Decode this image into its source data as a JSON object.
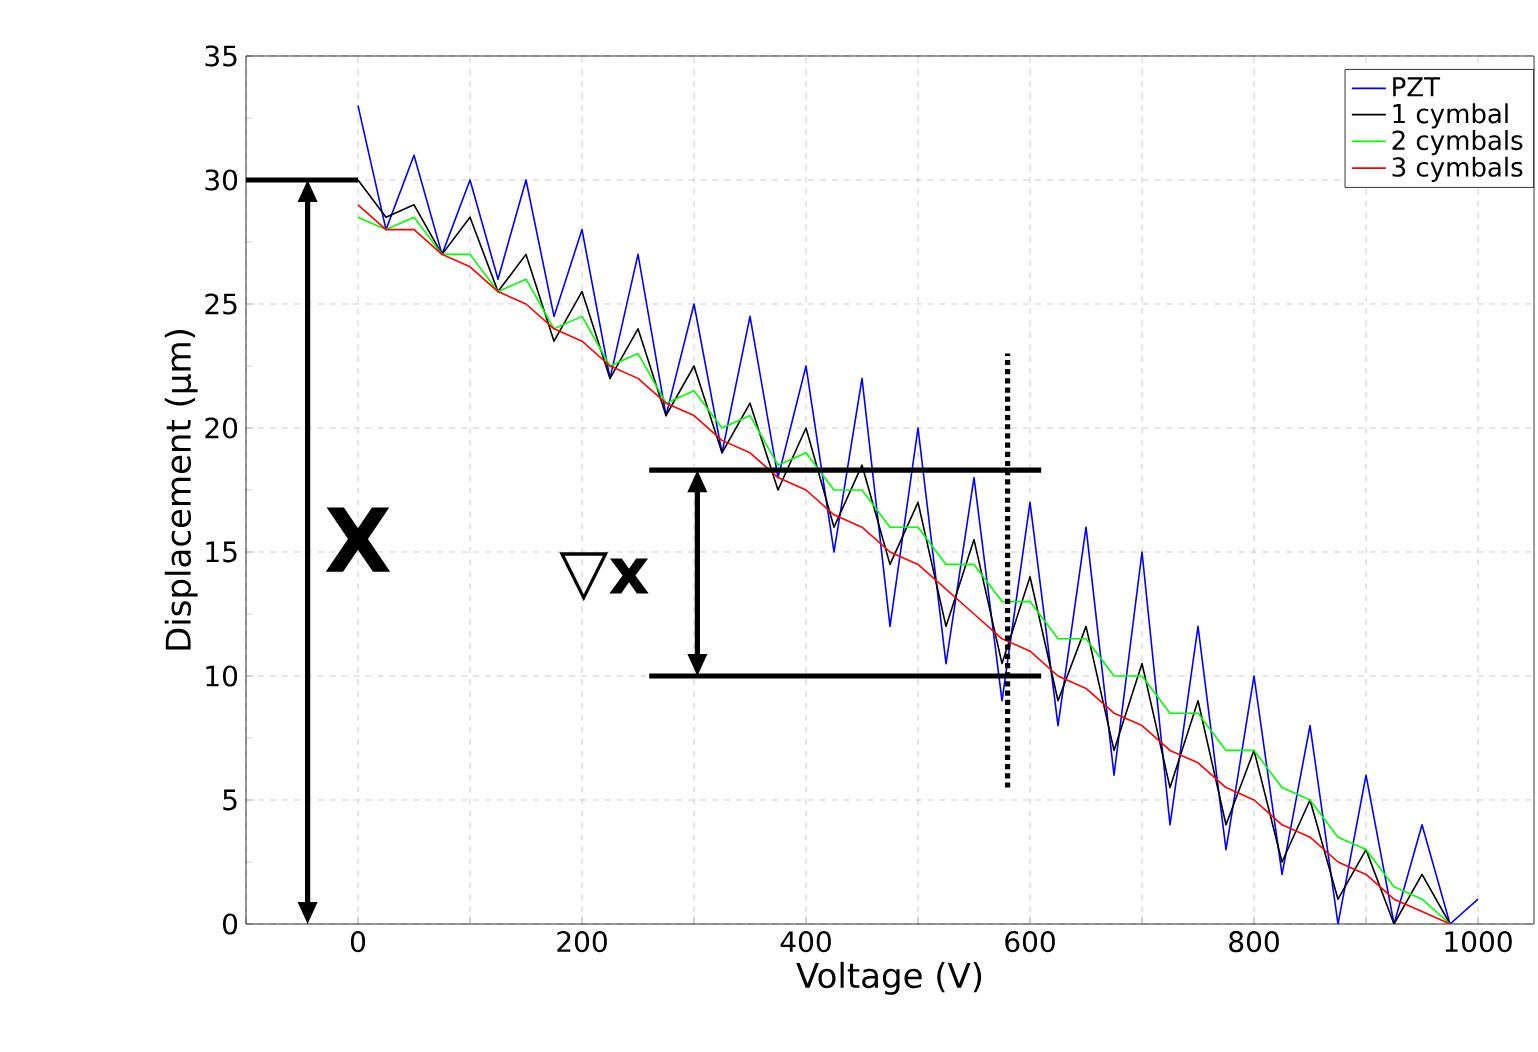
{
  "chart_data": {
    "type": "line",
    "xlabel": "Voltage (V)",
    "ylabel": "Displacement (μm)",
    "xlim": [
      -100,
      1050
    ],
    "ylim": [
      0,
      35
    ],
    "xticks": [
      {
        "value": -100,
        "label": null
      },
      0,
      {
        "value": 100,
        "label": null
      },
      200,
      {
        "value": 300,
        "label": null
      },
      400,
      {
        "value": 500,
        "label": null
      },
      600,
      {
        "value": 700,
        "label": null
      },
      800,
      {
        "value": 900,
        "label": null
      },
      1000
    ],
    "yticks": [
      0,
      5,
      10,
      15,
      20,
      25,
      30,
      35
    ],
    "grid": true,
    "legend": "top right",
    "marker": "none",
    "line_style": "solid",
    "x": [
      0,
      25,
      50,
      75,
      100,
      125,
      150,
      175,
      200,
      225,
      250,
      275,
      300,
      325,
      350,
      375,
      400,
      425,
      450,
      475,
      500,
      525,
      550,
      575,
      600,
      625,
      650,
      675,
      700,
      725,
      750,
      775,
      800,
      825,
      850,
      875,
      900,
      925,
      950,
      975,
      1000
    ],
    "series": [
      {
        "name": "PZT",
        "color": "#0000ff",
        "values": [
          33,
          28,
          31,
          27,
          30,
          26,
          30,
          24.5,
          28,
          22,
          27,
          20.5,
          25,
          19,
          24.5,
          18,
          22.5,
          15,
          22,
          12,
          20,
          10.5,
          18,
          9,
          17,
          8,
          16,
          6,
          15,
          4,
          12,
          3,
          10,
          2,
          8,
          0,
          6,
          0,
          4,
          0,
          1
        ]
      },
      {
        "name": "1 cymbal",
        "color": "#000000",
        "values": [
          30,
          28.5,
          29,
          27,
          28.5,
          25.5,
          27,
          23.5,
          25.5,
          22,
          24,
          20.5,
          22.5,
          19,
          21,
          17.5,
          20,
          16,
          18.5,
          14.5,
          17,
          12,
          15.5,
          10.5,
          14,
          9,
          12,
          7,
          10.5,
          5.5,
          9,
          4,
          7,
          2.5,
          5,
          1,
          3,
          0,
          2,
          0,
          null
        ]
      },
      {
        "name": "2 cymbals",
        "color": "#00ff00",
        "values": [
          28.5,
          28,
          28.5,
          27,
          27,
          25.5,
          26,
          24,
          24.5,
          22.5,
          23,
          21,
          21.5,
          20,
          20.5,
          18.5,
          19,
          17.5,
          17.5,
          16,
          16,
          14.5,
          14.5,
          13,
          13,
          11.5,
          11.5,
          10,
          10,
          8.5,
          8.5,
          7,
          7,
          5.5,
          5,
          3.5,
          3,
          1.5,
          1,
          0,
          null
        ]
      },
      {
        "name": "3 cymbals",
        "color": "#ff0000",
        "values": [
          29,
          28,
          28,
          27,
          26.5,
          25.5,
          25,
          24,
          23.5,
          22.5,
          22,
          21,
          20.5,
          19.5,
          19,
          18,
          17.5,
          16.5,
          16,
          15,
          14.5,
          13.5,
          12.5,
          11.5,
          11,
          10,
          9.5,
          8.5,
          8,
          7,
          6.5,
          5.5,
          5,
          4,
          3.5,
          2.5,
          2,
          1,
          0.5,
          0,
          null
        ]
      }
    ],
    "ref_lines": [
      {
        "axis": "y",
        "value": 30,
        "color": "#000000",
        "line_style": "solid"
      },
      {
        "axis": "y",
        "value": 18.3,
        "color": "#000000",
        "line_style": "solid"
      },
      {
        "axis": "y",
        "value": 10,
        "color": "#000000",
        "line_style": "solid"
      },
      {
        "axis": "x",
        "value": 580,
        "color": "#000000",
        "line_style": "dotted"
      }
    ],
    "annotations": [
      "X",
      "▽x"
    ]
  }
}
